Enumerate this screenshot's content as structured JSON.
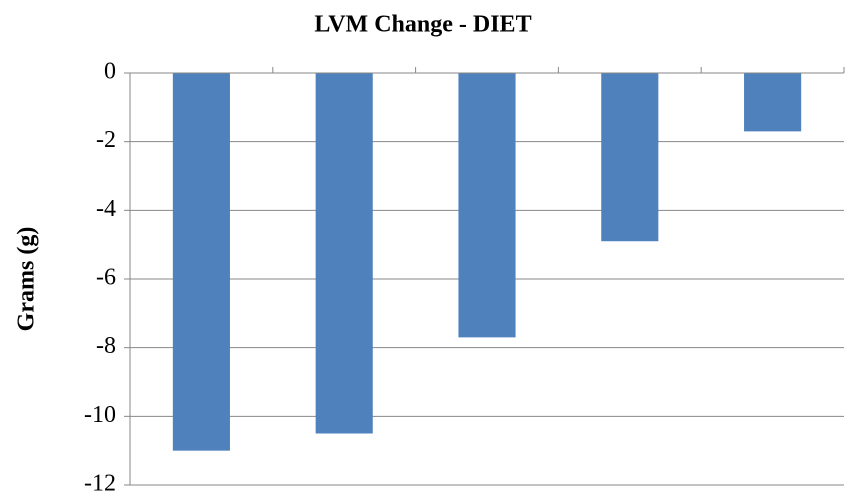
{
  "chart_data": {
    "type": "bar",
    "title": "LVM Change - DIET",
    "y_label": "Grams (g)",
    "categories": [
      null,
      null,
      null,
      null,
      null
    ],
    "values": [
      -11,
      -10.5,
      -7.7,
      -4.9,
      -1.7
    ],
    "color": "#4f81bd",
    "ylim": [
      -12,
      0
    ],
    "yticks": [
      -12,
      -10,
      -8,
      -6,
      -4,
      -2,
      0
    ],
    "grid": true
  }
}
